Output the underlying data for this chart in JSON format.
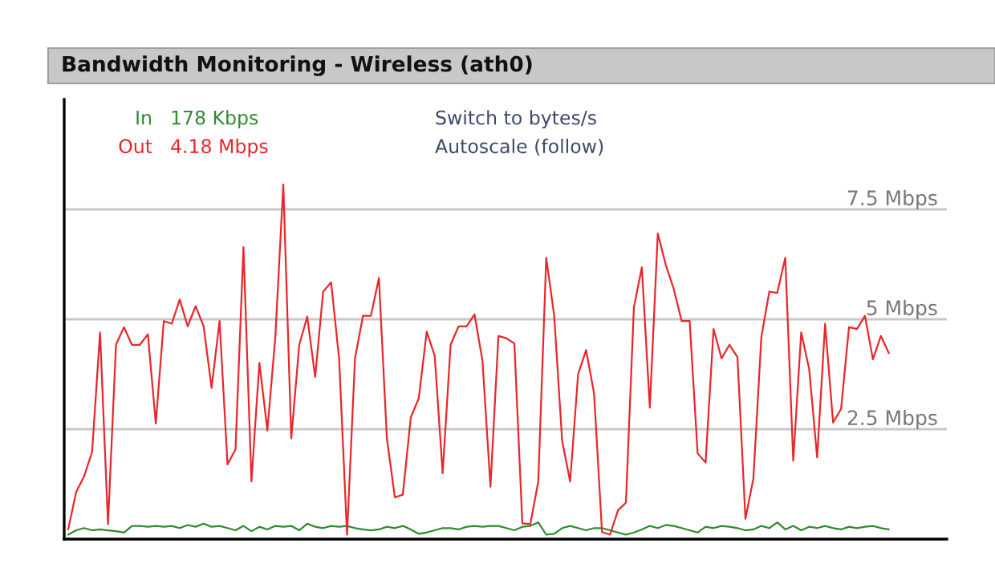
{
  "chart_data": {
    "type": "line",
    "title": "Bandwidth Monitoring - Wireless (ath0)",
    "categories": [
      null,
      null,
      null,
      null,
      null,
      null,
      null,
      null,
      null,
      null,
      null,
      null,
      null,
      null,
      null,
      null,
      null,
      null,
      null,
      null,
      null,
      null,
      null,
      null,
      null,
      null,
      null,
      null,
      null,
      null,
      null,
      null,
      null,
      null,
      null,
      null,
      null,
      null,
      null,
      null,
      null,
      null,
      null,
      null,
      null,
      null,
      null,
      null,
      null,
      null,
      null,
      null,
      null,
      null,
      null,
      null,
      null,
      null,
      null,
      null,
      null,
      null,
      null,
      null,
      null,
      null,
      null,
      null,
      null,
      null,
      null,
      null,
      null,
      null,
      null,
      null,
      null,
      null,
      null,
      null,
      null,
      null,
      null,
      null,
      null,
      null,
      null,
      null,
      null,
      null,
      null,
      null,
      null,
      null,
      null,
      null,
      null,
      null,
      null,
      null,
      null,
      null,
      null,
      null
    ],
    "series": [
      {
        "name": "In",
        "color": "#2e8b2e",
        "values": [
          0.1,
          0.2,
          0.25,
          0.2,
          0.22,
          0.2,
          0.18,
          0.15,
          0.3,
          0.3,
          0.28,
          0.3,
          0.28,
          0.3,
          0.25,
          0.32,
          0.28,
          0.35,
          0.28,
          0.3,
          0.25,
          0.2,
          0.3,
          0.18,
          0.28,
          0.22,
          0.3,
          0.28,
          0.3,
          0.2,
          0.35,
          0.28,
          0.25,
          0.3,
          0.28,
          0.3,
          0.25,
          0.22,
          0.2,
          0.22,
          0.28,
          0.25,
          0.3,
          0.22,
          0.12,
          0.15,
          0.2,
          0.25,
          0.25,
          0.22,
          0.28,
          0.3,
          0.28,
          0.3,
          0.3,
          0.25,
          0.2,
          0.28,
          0.3,
          0.38,
          0.1,
          0.12,
          0.25,
          0.3,
          0.25,
          0.2,
          0.25,
          0.25,
          0.2,
          0.15,
          0.1,
          0.15,
          0.22,
          0.3,
          0.25,
          0.32,
          0.3,
          0.25,
          0.2,
          0.15,
          0.28,
          0.25,
          0.3,
          0.28,
          0.25,
          0.2,
          0.22,
          0.3,
          0.25,
          0.38,
          0.22,
          0.3,
          0.2,
          0.28,
          0.25,
          0.3,
          0.25,
          0.22,
          0.28,
          0.25,
          0.28,
          0.3,
          0.25,
          0.22
        ]
      },
      {
        "name": "Out",
        "color": "#e8262b",
        "values": [
          0.22,
          1.07,
          1.43,
          1.98,
          4.7,
          0.34,
          4.42,
          4.82,
          4.42,
          4.42,
          4.66,
          2.63,
          4.96,
          4.9,
          5.45,
          4.84,
          5.3,
          4.84,
          3.44,
          4.96,
          1.7,
          2.04,
          6.64,
          1.31,
          4.01,
          2.47,
          4.6,
          8.07,
          2.29,
          4.42,
          5.06,
          3.69,
          5.63,
          5.84,
          4.11,
          0.1,
          4.11,
          5.08,
          5.08,
          5.94,
          2.29,
          0.95,
          1.01,
          2.77,
          3.2,
          4.72,
          4.17,
          1.5,
          4.42,
          4.84,
          4.84,
          5.11,
          4.05,
          1.19,
          4.62,
          4.57,
          4.45,
          0.36,
          0.34,
          1.31,
          6.4,
          5.08,
          2.23,
          1.31,
          3.75,
          4.3,
          3.32,
          0.16,
          0.1,
          0.65,
          0.83,
          5.27,
          6.18,
          2.99,
          6.95,
          6.24,
          5.69,
          4.96,
          4.96,
          1.95,
          1.74,
          4.78,
          4.11,
          4.42,
          4.14,
          0.46,
          1.38,
          4.6,
          5.63,
          5.6,
          6.4,
          1.78,
          4.7,
          3.87,
          1.86,
          4.9,
          2.65,
          2.96,
          4.82,
          4.78,
          5.08,
          4.09,
          4.62,
          4.23
        ]
      }
    ],
    "annotations": [
      "178 Kbps",
      "4.18 Mbps",
      "Switch to bytes/s",
      "Autoscale (follow)"
    ],
    "ylim": [
      0,
      10
    ],
    "yticks": [
      {
        "value": 2.5,
        "label": "2.5 Mbps"
      },
      {
        "value": 5,
        "label": "5 Mbps"
      },
      {
        "value": 7.5,
        "label": "7.5 Mbps"
      }
    ],
    "tick_labels": "y",
    "grid": "y",
    "legend": "top left",
    "line_style": "solid",
    "marker": "none"
  }
}
